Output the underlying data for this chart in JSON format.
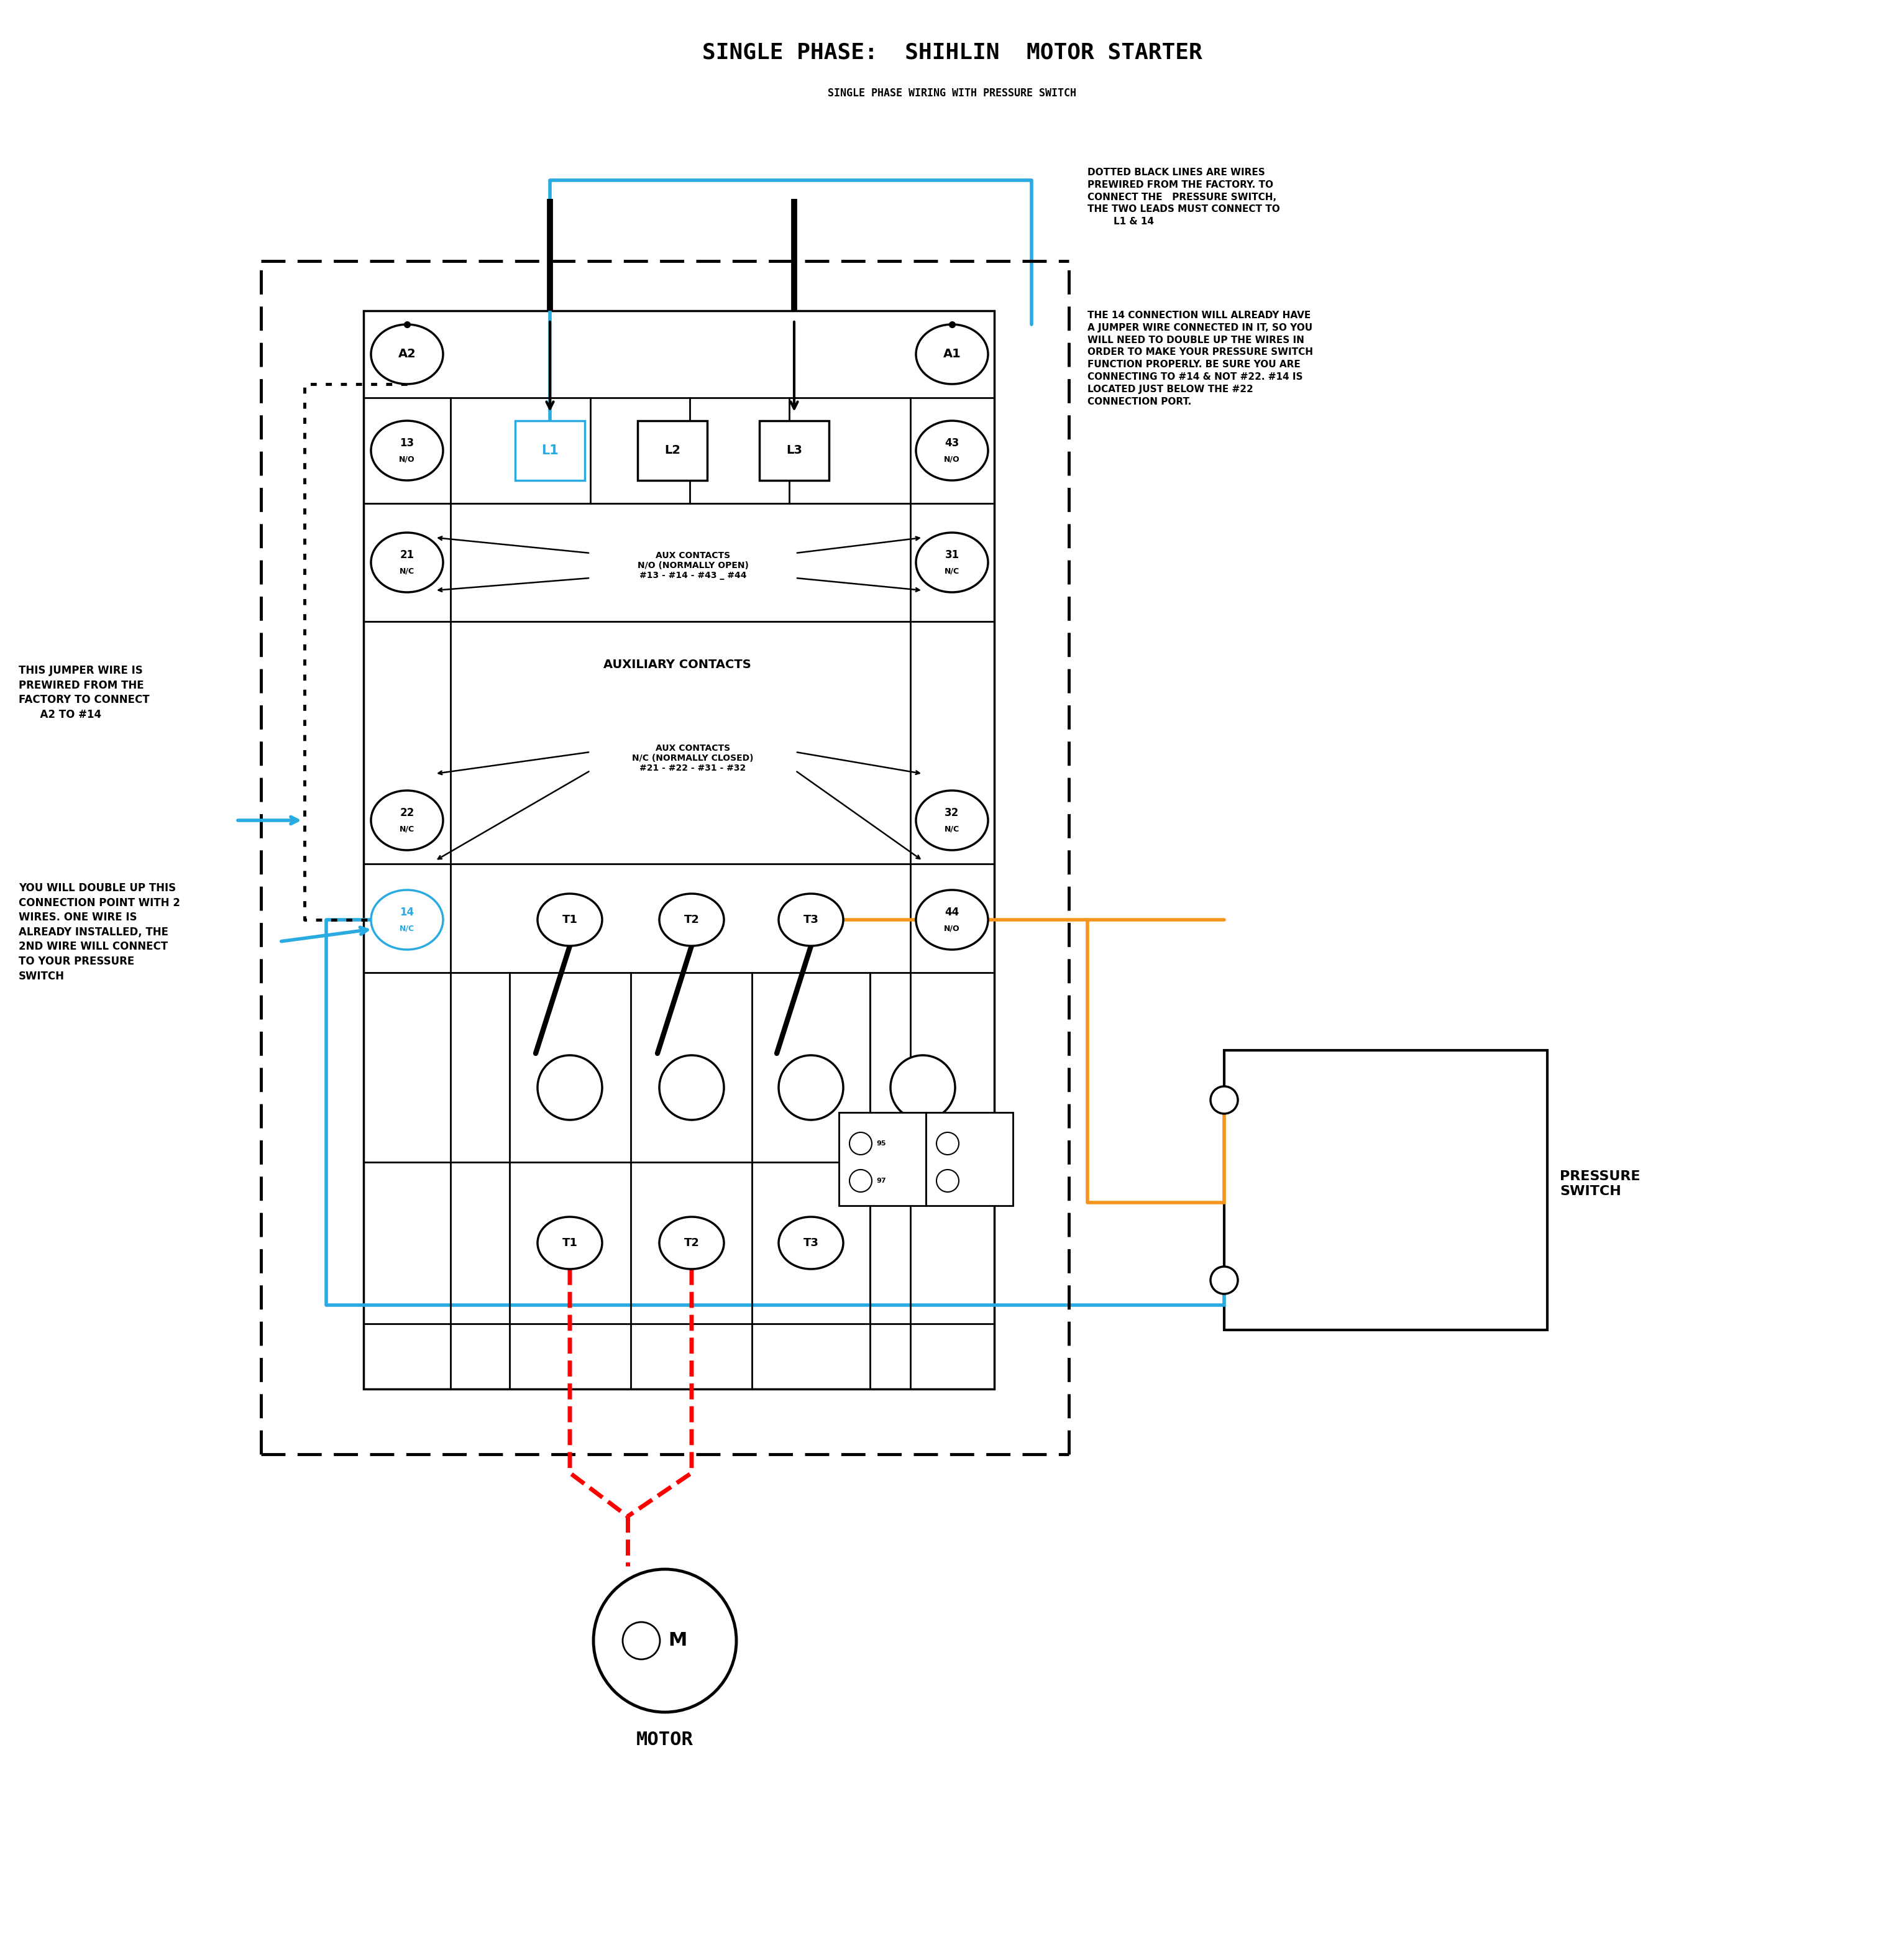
{
  "title": "SINGLE PHASE:  SHIHLIN  MOTOR STARTER",
  "subtitle": "SINGLE PHASE WIRING WITH PRESSURE SWITCH",
  "bg_color": "#ffffff",
  "title_fontsize": 26,
  "subtitle_fontsize": 12,
  "right_text1": "DOTTED BLACK LINES ARE WIRES\nPREWIRED FROM THE FACTORY. TO\nCONNECT THE   PRESSURE SWITCH,\nTHE TWO LEADS MUST CONNECT TO\n        L1 & 14",
  "right_text2": "THE 14 CONNECTION WILL ALREADY HAVE\nA JUMPER WIRE CONNECTED IN IT, SO YOU\nWILL NEED TO DOUBLE UP THE WIRES IN\nORDER TO MAKE YOUR PRESSURE SWITCH\nFUNCTION PROPERLY. BE SURE YOU ARE\nCONNECTING TO #14 & NOT #22. #14 IS\nLOCATED JUST BELOW THE #22\nCONNECTION PORT.",
  "left_text1": "THIS JUMPER WIRE IS\nPREWIRED FROM THE\nFACTORY TO CONNECT\n      A2 TO #14",
  "left_text2": "YOU WILL DOUBLE UP THIS\nCONNECTION POINT WITH 2\nWIRES. ONE WIRE IS\nALREADY INSTALLED, THE\n2ND WIRE WILL CONNECT\nTO YOUR PRESSURE\nSWITCH",
  "motor_label": "MOTOR",
  "pressure_switch_label": "PRESSURE\nSWITCH",
  "blue_color": "#29abe2",
  "orange_color": "#f7941d",
  "red_color": "#ff0000"
}
